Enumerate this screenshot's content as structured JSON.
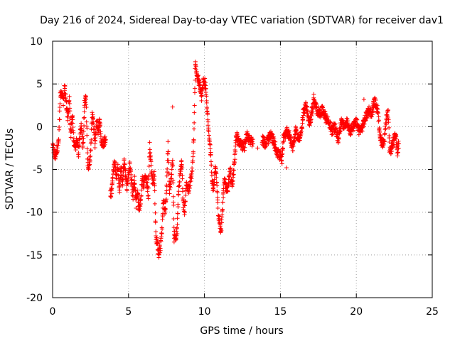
{
  "chart_data": {
    "type": "scatter",
    "title": "Day 216 of 2024, Sidereal Day-to-day VTEC variation (SDTVAR) for receiver dav1",
    "xlabel": "GPS time / hours",
    "ylabel": "SDTVAR / TECUs",
    "xlim": [
      0,
      25
    ],
    "ylim": [
      -20,
      10
    ],
    "xticks": [
      0,
      5,
      10,
      15,
      20,
      25
    ],
    "yticks": [
      -20,
      -15,
      -10,
      -5,
      0,
      5,
      10
    ],
    "xtick_labels": [
      "0",
      "5",
      "10",
      "15",
      "20",
      "25"
    ],
    "ytick_labels": [
      "-20",
      "-15",
      "-10",
      "-5",
      "0",
      "5",
      "10"
    ],
    "grid": true,
    "marker": "+",
    "marker_color": "#ff0000",
    "trace": [
      [
        0.0,
        -2.0
      ],
      [
        0.1,
        -3.0
      ],
      [
        0.2,
        -3.5
      ],
      [
        0.3,
        -2.5
      ],
      [
        0.4,
        -2.0
      ],
      [
        0.5,
        3.5
      ],
      [
        0.6,
        4.0
      ],
      [
        0.7,
        3.0
      ],
      [
        0.8,
        5.0
      ],
      [
        0.9,
        2.5
      ],
      [
        1.0,
        1.0
      ],
      [
        1.1,
        3.0
      ],
      [
        1.2,
        -1.0
      ],
      [
        1.3,
        1.5
      ],
      [
        1.4,
        -2.0
      ],
      [
        1.5,
        -2.5
      ],
      [
        1.6,
        -1.5
      ],
      [
        1.7,
        -3.0
      ],
      [
        1.8,
        -1.0
      ],
      [
        1.9,
        0.0
      ],
      [
        2.0,
        -2.5
      ],
      [
        2.1,
        2.5
      ],
      [
        2.2,
        3.5
      ],
      [
        2.3,
        -4.0
      ],
      [
        2.4,
        -5.0
      ],
      [
        2.5,
        -3.0
      ],
      [
        2.6,
        1.5
      ],
      [
        2.7,
        0.0
      ],
      [
        2.8,
        -2.0
      ],
      [
        2.9,
        1.0
      ],
      [
        3.0,
        -0.5
      ],
      [
        3.1,
        0.5
      ],
      [
        3.2,
        -1.5
      ],
      [
        3.3,
        -2.0
      ],
      [
        3.5,
        -1.5
      ],
      [
        3.8,
        -8.0
      ],
      [
        3.9,
        -7.5
      ],
      [
        4.0,
        -5.0
      ],
      [
        4.1,
        -4.0
      ],
      [
        4.2,
        -6.0
      ],
      [
        4.3,
        -4.5
      ],
      [
        4.4,
        -7.5
      ],
      [
        4.5,
        -5.0
      ],
      [
        4.6,
        -6.5
      ],
      [
        4.7,
        -4.0
      ],
      [
        4.8,
        -5.5
      ],
      [
        4.9,
        -7.0
      ],
      [
        5.0,
        -5.5
      ],
      [
        5.1,
        -4.5
      ],
      [
        5.2,
        -6.5
      ],
      [
        5.3,
        -8.0
      ],
      [
        5.4,
        -6.0
      ],
      [
        5.5,
        -9.0
      ],
      [
        5.6,
        -7.5
      ],
      [
        5.7,
        -10.0
      ],
      [
        5.8,
        -8.5
      ],
      [
        5.9,
        -6.0
      ],
      [
        6.0,
        -7.0
      ],
      [
        6.1,
        -5.5
      ],
      [
        6.2,
        -6.5
      ],
      [
        6.3,
        -8.0
      ],
      [
        6.4,
        -2.0
      ],
      [
        6.5,
        -5.0
      ],
      [
        6.6,
        -6.5
      ],
      [
        6.7,
        -5.5
      ],
      [
        6.8,
        -13.0
      ],
      [
        6.9,
        -13.5
      ],
      [
        7.0,
        -15.0
      ],
      [
        7.1,
        -14.0
      ],
      [
        7.2,
        -12.0
      ],
      [
        7.3,
        -8.5
      ],
      [
        7.4,
        -10.0
      ],
      [
        7.5,
        -8.0
      ],
      [
        7.6,
        -2.0
      ],
      [
        7.7,
        -7.5
      ],
      [
        7.8,
        -6.0
      ],
      [
        7.9,
        -4.0
      ],
      [
        8.0,
        -12.5
      ],
      [
        8.1,
        -13.0
      ],
      [
        8.2,
        -12.0
      ],
      [
        8.3,
        -7.5
      ],
      [
        8.4,
        -5.5
      ],
      [
        8.5,
        -4.0
      ],
      [
        8.6,
        -9.0
      ],
      [
        8.7,
        -10.0
      ],
      [
        8.8,
        -6.5
      ],
      [
        9.0,
        -7.5
      ],
      [
        9.1,
        -6.0
      ],
      [
        9.2,
        -5.0
      ],
      [
        9.3,
        -1.5
      ],
      [
        9.4,
        7.5
      ],
      [
        9.5,
        6.0
      ],
      [
        9.6,
        5.5
      ],
      [
        9.7,
        4.5
      ],
      [
        9.8,
        3.5
      ],
      [
        9.9,
        5.0
      ],
      [
        10.0,
        5.5
      ],
      [
        10.1,
        4.0
      ],
      [
        10.2,
        1.5
      ],
      [
        10.3,
        -1.5
      ],
      [
        10.4,
        -3.0
      ],
      [
        10.5,
        -6.5
      ],
      [
        10.6,
        -7.5
      ],
      [
        10.7,
        -5.0
      ],
      [
        10.8,
        -6.0
      ],
      [
        10.9,
        -10.0
      ],
      [
        11.0,
        -11.5
      ],
      [
        11.1,
        -12.0
      ],
      [
        11.3,
        -6.0
      ],
      [
        11.4,
        -7.0
      ],
      [
        11.5,
        -7.5
      ],
      [
        11.6,
        -6.5
      ],
      [
        11.7,
        -5.0
      ],
      [
        11.8,
        -7.0
      ],
      [
        11.9,
        -5.5
      ],
      [
        12.0,
        -3.5
      ],
      [
        12.1,
        -1.0
      ],
      [
        12.2,
        -1.5
      ],
      [
        12.4,
        -2.0
      ],
      [
        12.6,
        -2.5
      ],
      [
        12.8,
        -1.0
      ],
      [
        13.0,
        -1.5
      ],
      [
        13.2,
        -2.0
      ],
      [
        13.5,
        -2.5
      ],
      [
        13.8,
        -1.5
      ],
      [
        14.0,
        -2.0
      ],
      [
        14.2,
        -1.5
      ],
      [
        14.4,
        -1.0
      ],
      [
        14.6,
        -2.0
      ],
      [
        14.8,
        -3.0
      ],
      [
        15.0,
        -3.5
      ],
      [
        15.1,
        -4.0
      ],
      [
        15.2,
        -1.5
      ],
      [
        15.4,
        -0.5
      ],
      [
        15.6,
        -1.0
      ],
      [
        15.8,
        -2.5
      ],
      [
        16.0,
        -0.5
      ],
      [
        16.2,
        -1.5
      ],
      [
        16.4,
        -0.5
      ],
      [
        16.5,
        1.5
      ],
      [
        16.7,
        2.5
      ],
      [
        16.9,
        0.5
      ],
      [
        17.0,
        1.0
      ],
      [
        17.2,
        3.0
      ],
      [
        17.4,
        2.0
      ],
      [
        17.6,
        1.5
      ],
      [
        17.8,
        2.0
      ],
      [
        18.0,
        1.0
      ],
      [
        18.2,
        0.5
      ],
      [
        18.4,
        -0.5
      ],
      [
        18.6,
        0.0
      ],
      [
        18.8,
        -1.5
      ],
      [
        19.0,
        0.5
      ],
      [
        19.2,
        0.0
      ],
      [
        19.4,
        0.5
      ],
      [
        19.6,
        -0.5
      ],
      [
        19.8,
        0.0
      ],
      [
        20.0,
        0.5
      ],
      [
        20.2,
        -0.5
      ],
      [
        20.4,
        0.0
      ],
      [
        20.6,
        1.0
      ],
      [
        20.8,
        2.0
      ],
      [
        21.0,
        1.5
      ],
      [
        21.2,
        3.0
      ],
      [
        21.4,
        2.0
      ],
      [
        21.5,
        0.0
      ],
      [
        21.6,
        -1.5
      ],
      [
        21.8,
        -2.0
      ],
      [
        22.0,
        1.0
      ],
      [
        22.1,
        1.5
      ],
      [
        22.2,
        -3.0
      ],
      [
        22.4,
        -2.0
      ],
      [
        22.6,
        -1.0
      ],
      [
        22.7,
        -3.0
      ],
      [
        22.8,
        -2.0
      ]
    ],
    "outliers": [
      [
        7.9,
        2.3
      ],
      [
        15.4,
        -4.8
      ],
      [
        17.2,
        3.8
      ],
      [
        20.5,
        3.2
      ],
      [
        8.0,
        -13.5
      ]
    ]
  }
}
